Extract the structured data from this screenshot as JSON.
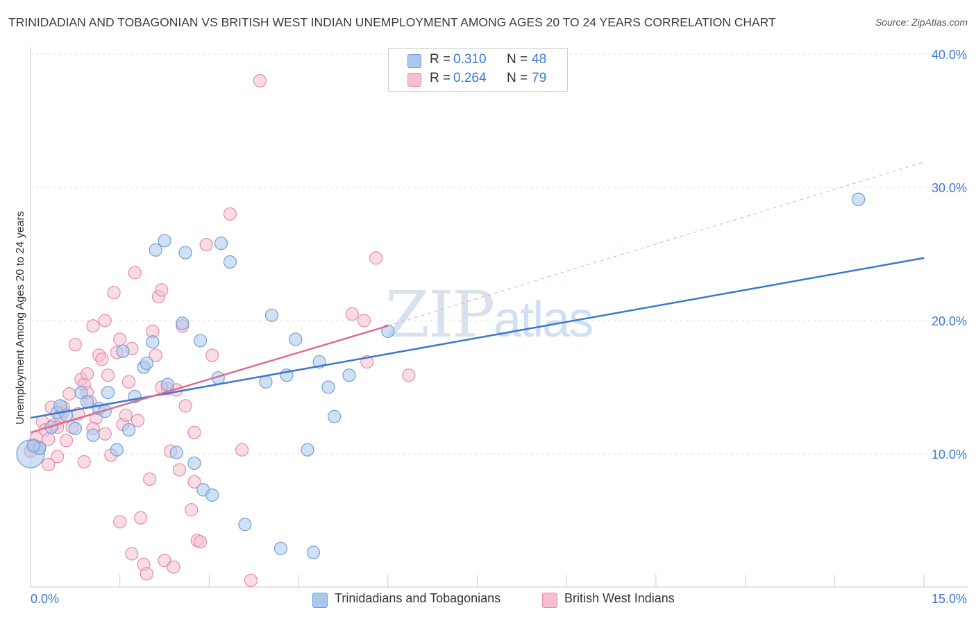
{
  "title": "TRINIDADIAN AND TOBAGONIAN VS BRITISH WEST INDIAN UNEMPLOYMENT AMONG AGES 20 TO 24 YEARS CORRELATION CHART",
  "source": "Source: ZipAtlas.com",
  "watermark": {
    "zip": "ZIP",
    "atlas": "atlas"
  },
  "legend": {
    "rows": [
      {
        "r_label": "R =",
        "r_value": "0.310",
        "n_label": "N =",
        "n_value": "48"
      },
      {
        "r_label": "R =",
        "r_value": "0.264",
        "n_label": "N =",
        "n_value": "79"
      }
    ]
  },
  "chart_data": {
    "type": "scatter",
    "title": "TRINIDADIAN AND TOBAGONIAN VS BRITISH WEST INDIAN UNEMPLOYMENT AMONG AGES 20 TO 24 YEARS CORRELATION CHART",
    "xlabel": "",
    "ylabel": "Unemployment Among Ages 20 to 24 years",
    "xlim": [
      0,
      15
    ],
    "ylim": [
      0,
      40
    ],
    "x_tick_labels": [
      "0.0%",
      "15.0%"
    ],
    "y_ticks": [
      10,
      20,
      30,
      40
    ],
    "y_tick_labels": [
      "10.0%",
      "20.0%",
      "30.0%",
      "40.0%"
    ],
    "grid": true,
    "legend_position": "top-center",
    "series": [
      {
        "name": "Trinidadians and Tobagonians",
        "color": "#a9c8ef",
        "edge_color": "#6f9fd8",
        "line_color": "#3a78cc",
        "r": 0.31,
        "n": 48,
        "trend": {
          "x": [
            0,
            15
          ],
          "y": [
            12.7,
            24.7
          ]
        },
        "points": [
          [
            0.0,
            10.0
          ],
          [
            0.15,
            10.4
          ],
          [
            0.35,
            12.0
          ],
          [
            0.45,
            13.1
          ],
          [
            0.5,
            13.6
          ],
          [
            0.6,
            12.9
          ],
          [
            0.75,
            11.9
          ],
          [
            0.85,
            14.6
          ],
          [
            0.95,
            13.9
          ],
          [
            1.05,
            11.4
          ],
          [
            1.15,
            13.4
          ],
          [
            1.25,
            13.2
          ],
          [
            1.3,
            14.6
          ],
          [
            1.45,
            10.3
          ],
          [
            1.55,
            17.7
          ],
          [
            1.65,
            11.8
          ],
          [
            1.75,
            14.3
          ],
          [
            1.9,
            16.5
          ],
          [
            1.95,
            16.8
          ],
          [
            2.05,
            18.4
          ],
          [
            2.1,
            25.3
          ],
          [
            2.25,
            26.0
          ],
          [
            2.3,
            15.2
          ],
          [
            2.45,
            10.1
          ],
          [
            2.55,
            19.8
          ],
          [
            2.6,
            25.1
          ],
          [
            2.75,
            9.3
          ],
          [
            2.85,
            18.5
          ],
          [
            2.9,
            7.3
          ],
          [
            3.05,
            6.9
          ],
          [
            3.15,
            15.7
          ],
          [
            3.2,
            25.8
          ],
          [
            3.35,
            24.4
          ],
          [
            3.6,
            4.7
          ],
          [
            3.95,
            15.4
          ],
          [
            4.05,
            20.4
          ],
          [
            4.2,
            2.9
          ],
          [
            4.3,
            15.9
          ],
          [
            4.45,
            18.6
          ],
          [
            4.65,
            10.3
          ],
          [
            4.75,
            2.6
          ],
          [
            4.85,
            16.9
          ],
          [
            5.0,
            15.0
          ],
          [
            5.1,
            12.8
          ],
          [
            5.35,
            15.9
          ],
          [
            6.0,
            19.2
          ],
          [
            13.9,
            29.1
          ],
          [
            0.05,
            10.6
          ]
        ]
      },
      {
        "name": "British West Indians",
        "color": "#f6bfd0",
        "edge_color": "#e88aa8",
        "line_color": "#e06a93",
        "r": 0.264,
        "n": 79,
        "trend": {
          "x": [
            0,
            6.0
          ],
          "y": [
            11.6,
            19.6
          ]
        },
        "trend_ext": {
          "x": [
            6.0,
            15
          ],
          "y": [
            19.6,
            31.9
          ]
        },
        "points": [
          [
            0.0,
            10.2
          ],
          [
            0.05,
            10.7
          ],
          [
            0.1,
            11.2
          ],
          [
            0.15,
            10.5
          ],
          [
            0.2,
            12.4
          ],
          [
            0.25,
            11.8
          ],
          [
            0.3,
            11.1
          ],
          [
            0.35,
            13.5
          ],
          [
            0.4,
            12.2
          ],
          [
            0.45,
            9.8
          ],
          [
            0.5,
            12.8
          ],
          [
            0.55,
            13.2
          ],
          [
            0.6,
            11.0
          ],
          [
            0.65,
            14.5
          ],
          [
            0.7,
            12.0
          ],
          [
            0.75,
            18.2
          ],
          [
            0.8,
            13.0
          ],
          [
            0.85,
            15.6
          ],
          [
            0.9,
            15.2
          ],
          [
            0.95,
            14.6
          ],
          [
            1.0,
            13.9
          ],
          [
            1.05,
            19.6
          ],
          [
            1.1,
            12.7
          ],
          [
            1.15,
            17.4
          ],
          [
            1.2,
            17.1
          ],
          [
            1.25,
            11.5
          ],
          [
            1.3,
            15.9
          ],
          [
            1.35,
            9.9
          ],
          [
            1.4,
            22.1
          ],
          [
            1.45,
            17.6
          ],
          [
            1.5,
            18.6
          ],
          [
            1.55,
            12.2
          ],
          [
            1.6,
            12.9
          ],
          [
            1.65,
            15.4
          ],
          [
            1.7,
            17.9
          ],
          [
            1.75,
            23.6
          ],
          [
            1.8,
            12.5
          ],
          [
            1.85,
            5.2
          ],
          [
            1.9,
            1.7
          ],
          [
            1.95,
            1.0
          ],
          [
            2.0,
            8.1
          ],
          [
            2.05,
            19.2
          ],
          [
            2.1,
            17.4
          ],
          [
            2.15,
            21.8
          ],
          [
            2.2,
            22.3
          ],
          [
            2.25,
            2.0
          ],
          [
            2.3,
            14.9
          ],
          [
            2.35,
            10.2
          ],
          [
            2.4,
            1.5
          ],
          [
            2.45,
            14.8
          ],
          [
            2.5,
            8.8
          ],
          [
            2.55,
            19.6
          ],
          [
            2.6,
            13.6
          ],
          [
            2.7,
            5.8
          ],
          [
            2.75,
            7.9
          ],
          [
            2.8,
            3.5
          ],
          [
            2.85,
            3.4
          ],
          [
            2.95,
            25.7
          ],
          [
            3.05,
            17.4
          ],
          [
            3.35,
            28.0
          ],
          [
            3.55,
            10.3
          ],
          [
            3.7,
            0.5
          ],
          [
            3.85,
            38.0
          ],
          [
            0.9,
            9.4
          ],
          [
            1.05,
            11.9
          ],
          [
            1.5,
            4.9
          ],
          [
            1.7,
            2.5
          ],
          [
            2.75,
            11.6
          ],
          [
            5.4,
            20.5
          ],
          [
            5.6,
            20.0
          ],
          [
            5.65,
            16.9
          ],
          [
            5.8,
            24.7
          ],
          [
            6.35,
            15.9
          ],
          [
            0.3,
            9.2
          ],
          [
            0.55,
            13.5
          ],
          [
            0.45,
            12.0
          ],
          [
            0.95,
            16.0
          ],
          [
            1.25,
            20.0
          ],
          [
            2.2,
            15.0
          ]
        ]
      }
    ]
  }
}
